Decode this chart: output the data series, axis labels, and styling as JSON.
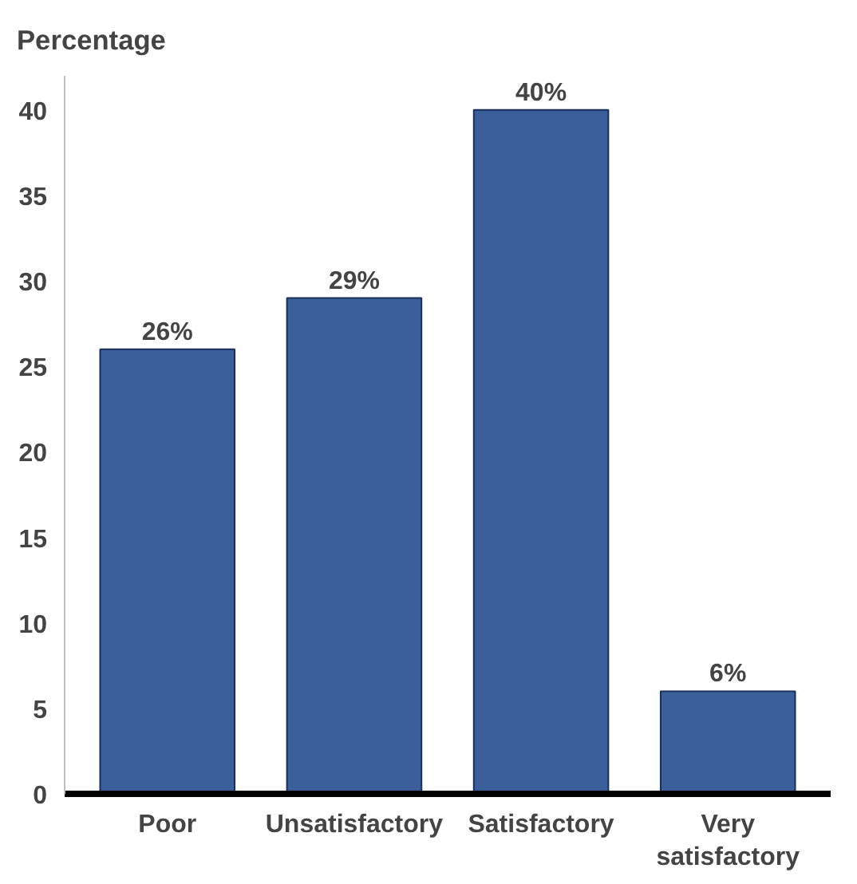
{
  "chart_data": {
    "type": "bar",
    "ylabel": "Percentage",
    "categories": [
      "Poor",
      "Unsatisfactory",
      "Satisfactory",
      "Very satisfactory"
    ],
    "values": [
      26,
      29,
      40,
      6
    ],
    "value_labels": [
      "26%",
      "29%",
      "40%",
      "6%"
    ],
    "color": "#3a5f9b",
    "ylim": [
      0,
      42
    ],
    "yticks": [
      0,
      5,
      10,
      15,
      20,
      25,
      30,
      35,
      40
    ],
    "grid": false
  }
}
